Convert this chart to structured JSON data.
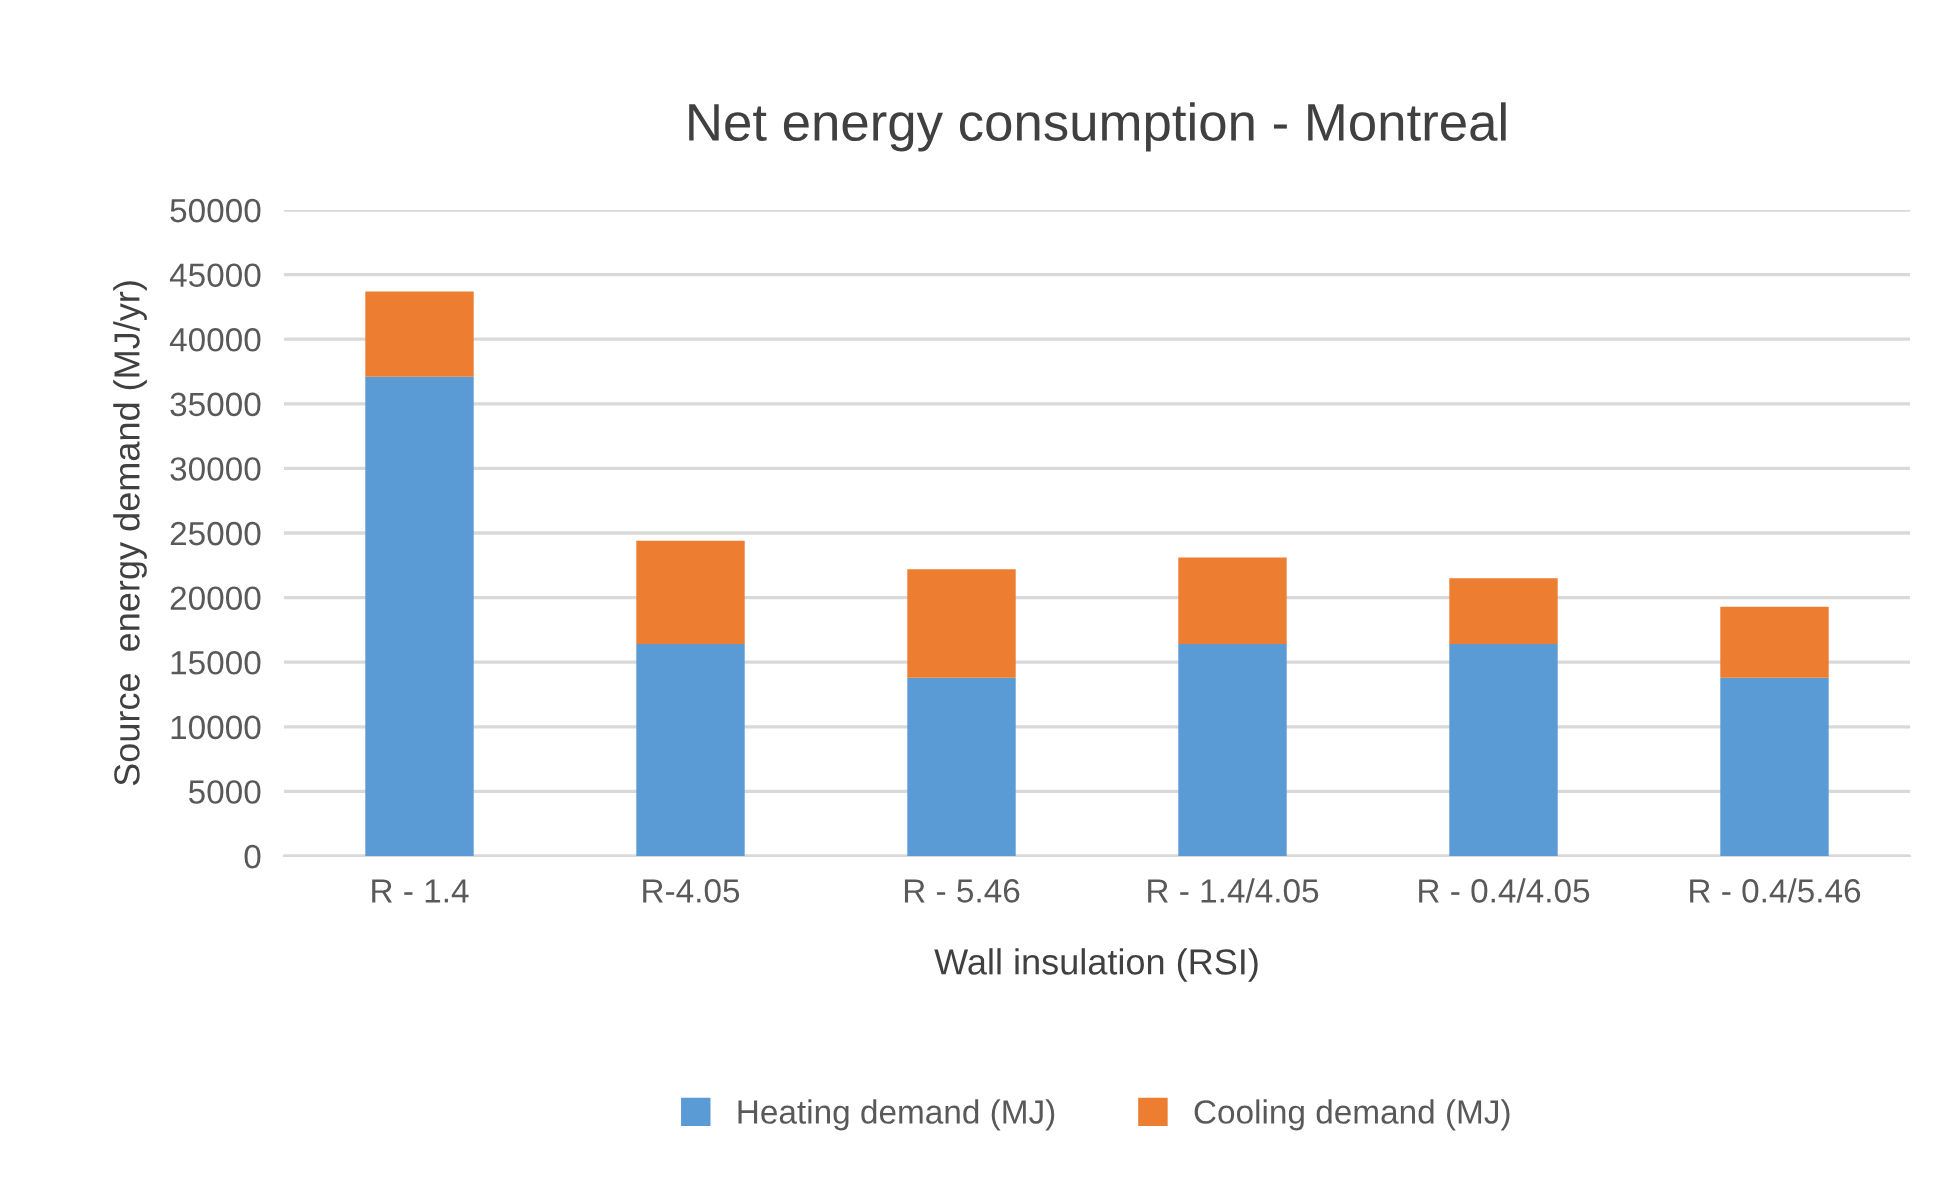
{
  "chart_data": {
    "type": "bar",
    "title": "Net energy consumption - Montreal",
    "xlabel": "Wall insulation (RSI)",
    "ylabel": "Source  energy demand (MJ/yr)",
    "categories": [
      "R - 1.4",
      "R-4.05",
      "R - 5.46",
      "R - 1.4/4.05",
      "R - 0.4/4.05",
      "R - 0.4/5.46"
    ],
    "series": [
      {
        "name": "Heating demand (MJ)",
        "color": "#5b9bd5",
        "values": [
          37100,
          16400,
          13800,
          16400,
          16400,
          13800
        ]
      },
      {
        "name": "Cooling demand (MJ)",
        "color": "#ed7d31",
        "values": [
          6600,
          8000,
          8400,
          6700,
          5100,
          5500
        ]
      }
    ],
    "stacked": true,
    "ylim": [
      0,
      50000
    ],
    "yticks": [
      0,
      5000,
      10000,
      15000,
      20000,
      25000,
      30000,
      35000,
      40000,
      45000,
      50000
    ],
    "grid": "y",
    "legend": "bottom"
  }
}
